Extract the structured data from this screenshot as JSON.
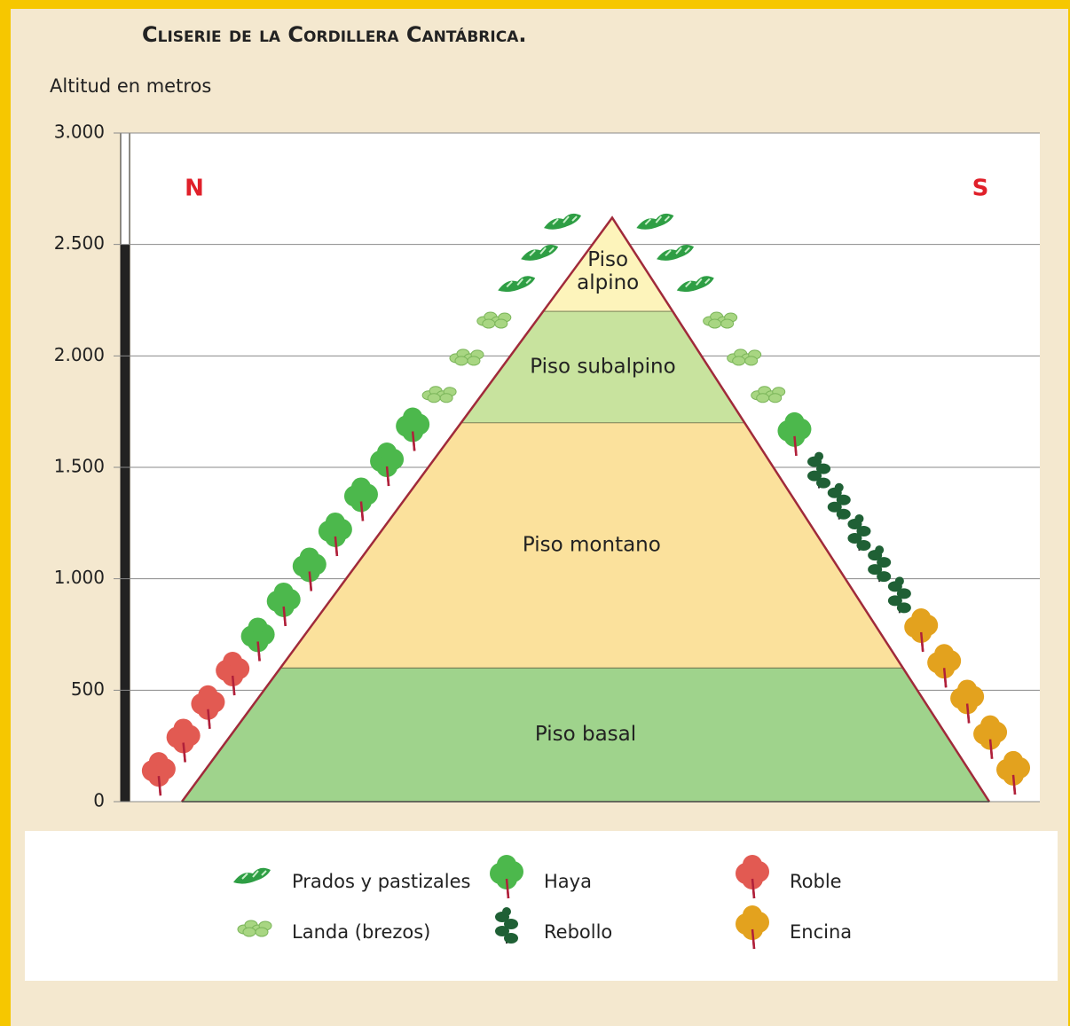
{
  "title": "Cliserie de la Cordillera Cantábrica.",
  "y_label": "Altitud en metros",
  "ylim": [
    0,
    3000
  ],
  "yticks": [
    0,
    500,
    {
      "value": 1000,
      "label": "1.000"
    },
    {
      "value": 1500,
      "label": "1.500"
    },
    {
      "value": 2000,
      "label": "2.000"
    },
    {
      "value": 2500,
      "label": "2.500"
    },
    {
      "value": 3000,
      "label": "3.000"
    }
  ],
  "north": "N",
  "south": "S",
  "peak": 2620,
  "zones": [
    {
      "lines": [
        "Piso basal"
      ],
      "from": 0,
      "to": 600,
      "color": "#9fd38c"
    },
    {
      "lines": [
        "Piso montano"
      ],
      "from": 600,
      "to": 1700,
      "color": "#fbe19c"
    },
    {
      "lines": [
        "Piso subalpino"
      ],
      "from": 1700,
      "to": 2200,
      "color": "#c8e39e"
    },
    {
      "lines": [
        "Piso",
        "alpino"
      ],
      "from": 2200,
      "to": 2620,
      "color": "#fdf4bb"
    }
  ],
  "legend": [
    {
      "label": "Prados y pastizales",
      "color": "#2e9e44",
      "north": [
        2200,
        2620
      ],
      "south": [
        2200,
        2620
      ]
    },
    {
      "label": "Landa (brezos)",
      "color": "#a8d682",
      "north": [
        1700,
        2200
      ],
      "south": [
        1700,
        2200
      ]
    },
    {
      "label": "Haya",
      "color": "#4cb84c",
      "north": [
        600,
        1700
      ],
      "south": [
        1500,
        1700
      ]
    },
    {
      "label": "Rebollo",
      "color": "#1f6035",
      "south": [
        800,
        1500
      ]
    },
    {
      "label": "Roble",
      "color": "#e25a52",
      "north": [
        0,
        600
      ]
    },
    {
      "label": "Encina",
      "color": "#e3a21e",
      "south": [
        0,
        800
      ]
    }
  ]
}
